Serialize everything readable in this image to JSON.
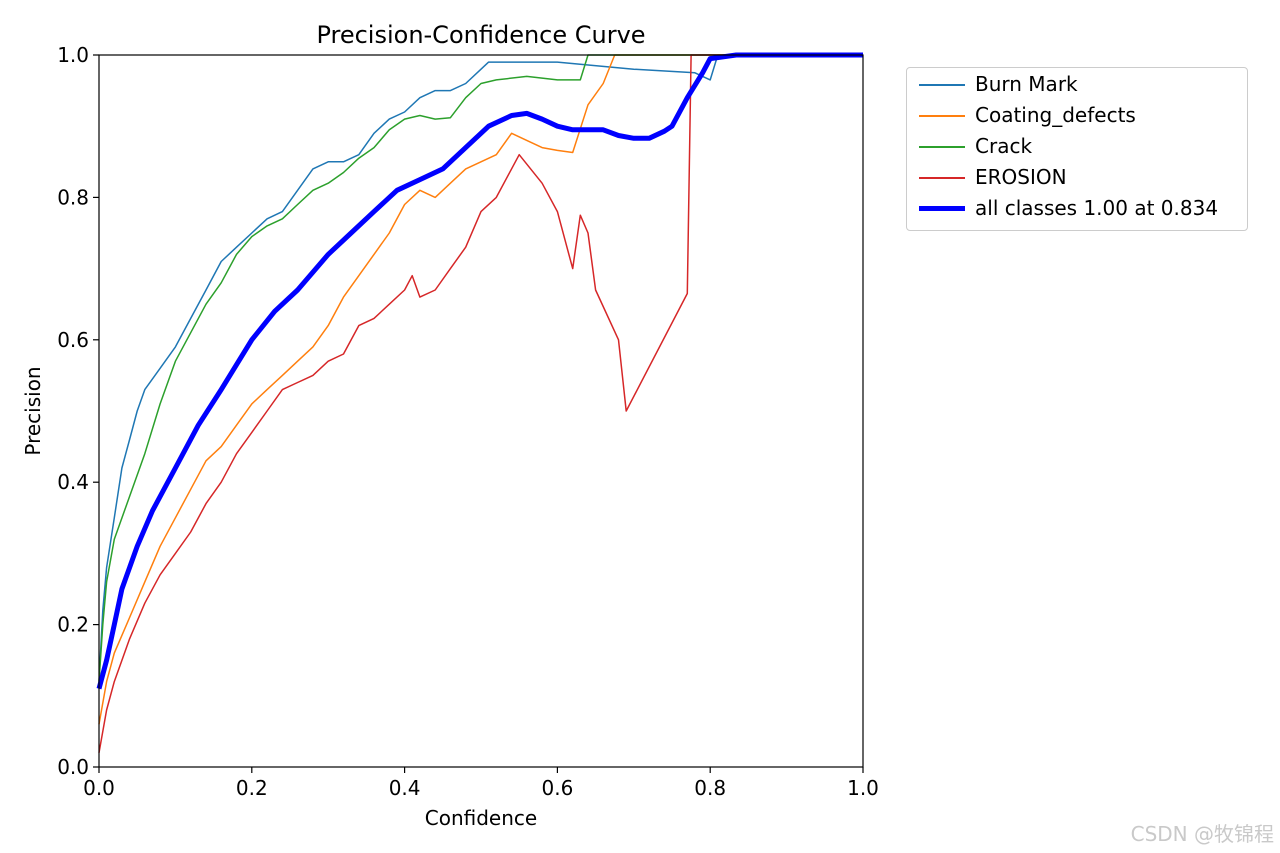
{
  "chart_data": {
    "type": "line",
    "title": "Precision-Confidence Curve",
    "xlabel": "Confidence",
    "ylabel": "Precision",
    "xlim": [
      0.0,
      1.0
    ],
    "ylim": [
      0.0,
      1.0
    ],
    "xticks": [
      "0.0",
      "0.2",
      "0.4",
      "0.6",
      "0.8",
      "1.0"
    ],
    "yticks": [
      "0.0",
      "0.2",
      "0.4",
      "0.6",
      "0.8",
      "1.0"
    ],
    "grid": false,
    "legend_position": "outside-right",
    "series": [
      {
        "name": "Burn Mark",
        "color": "#1f77b4",
        "width": 1.5,
        "points": [
          [
            0,
            0.12
          ],
          [
            0.005,
            0.22
          ],
          [
            0.01,
            0.28
          ],
          [
            0.02,
            0.35
          ],
          [
            0.03,
            0.42
          ],
          [
            0.04,
            0.46
          ],
          [
            0.05,
            0.5
          ],
          [
            0.06,
            0.53
          ],
          [
            0.08,
            0.56
          ],
          [
            0.1,
            0.59
          ],
          [
            0.12,
            0.63
          ],
          [
            0.14,
            0.67
          ],
          [
            0.16,
            0.71
          ],
          [
            0.18,
            0.73
          ],
          [
            0.2,
            0.75
          ],
          [
            0.22,
            0.77
          ],
          [
            0.24,
            0.78
          ],
          [
            0.26,
            0.81
          ],
          [
            0.28,
            0.84
          ],
          [
            0.3,
            0.85
          ],
          [
            0.32,
            0.85
          ],
          [
            0.34,
            0.86
          ],
          [
            0.36,
            0.89
          ],
          [
            0.38,
            0.91
          ],
          [
            0.4,
            0.92
          ],
          [
            0.42,
            0.94
          ],
          [
            0.44,
            0.95
          ],
          [
            0.46,
            0.95
          ],
          [
            0.48,
            0.96
          ],
          [
            0.5,
            0.98
          ],
          [
            0.51,
            0.99
          ],
          [
            0.6,
            0.99
          ],
          [
            0.7,
            0.98
          ],
          [
            0.78,
            0.975
          ],
          [
            0.8,
            0.965
          ],
          [
            0.81,
            1.0
          ],
          [
            1.0,
            1.0
          ]
        ]
      },
      {
        "name": "Coating_defects",
        "color": "#ff7f0e",
        "width": 1.5,
        "points": [
          [
            0,
            0.06
          ],
          [
            0.01,
            0.12
          ],
          [
            0.02,
            0.16
          ],
          [
            0.04,
            0.21
          ],
          [
            0.06,
            0.26
          ],
          [
            0.08,
            0.31
          ],
          [
            0.1,
            0.35
          ],
          [
            0.12,
            0.39
          ],
          [
            0.14,
            0.43
          ],
          [
            0.16,
            0.45
          ],
          [
            0.18,
            0.48
          ],
          [
            0.2,
            0.51
          ],
          [
            0.22,
            0.53
          ],
          [
            0.24,
            0.55
          ],
          [
            0.26,
            0.57
          ],
          [
            0.28,
            0.59
          ],
          [
            0.3,
            0.62
          ],
          [
            0.32,
            0.66
          ],
          [
            0.34,
            0.69
          ],
          [
            0.36,
            0.72
          ],
          [
            0.38,
            0.75
          ],
          [
            0.4,
            0.79
          ],
          [
            0.42,
            0.81
          ],
          [
            0.44,
            0.8
          ],
          [
            0.46,
            0.82
          ],
          [
            0.48,
            0.84
          ],
          [
            0.5,
            0.85
          ],
          [
            0.52,
            0.86
          ],
          [
            0.54,
            0.89
          ],
          [
            0.56,
            0.88
          ],
          [
            0.58,
            0.87
          ],
          [
            0.6,
            0.866
          ],
          [
            0.62,
            0.863
          ],
          [
            0.64,
            0.93
          ],
          [
            0.66,
            0.96
          ],
          [
            0.675,
            1.0
          ],
          [
            1.0,
            1.0
          ]
        ]
      },
      {
        "name": "Crack",
        "color": "#2ca02c",
        "width": 1.5,
        "points": [
          [
            0,
            0.12
          ],
          [
            0.005,
            0.2
          ],
          [
            0.01,
            0.26
          ],
          [
            0.02,
            0.32
          ],
          [
            0.04,
            0.38
          ],
          [
            0.06,
            0.44
          ],
          [
            0.08,
            0.51
          ],
          [
            0.1,
            0.57
          ],
          [
            0.12,
            0.61
          ],
          [
            0.14,
            0.65
          ],
          [
            0.16,
            0.68
          ],
          [
            0.18,
            0.72
          ],
          [
            0.2,
            0.745
          ],
          [
            0.22,
            0.76
          ],
          [
            0.24,
            0.77
          ],
          [
            0.26,
            0.79
          ],
          [
            0.28,
            0.81
          ],
          [
            0.3,
            0.82
          ],
          [
            0.32,
            0.835
          ],
          [
            0.34,
            0.855
          ],
          [
            0.36,
            0.87
          ],
          [
            0.38,
            0.895
          ],
          [
            0.4,
            0.91
          ],
          [
            0.42,
            0.915
          ],
          [
            0.44,
            0.91
          ],
          [
            0.46,
            0.912
          ],
          [
            0.48,
            0.94
          ],
          [
            0.5,
            0.96
          ],
          [
            0.52,
            0.965
          ],
          [
            0.56,
            0.97
          ],
          [
            0.6,
            0.965
          ],
          [
            0.63,
            0.965
          ],
          [
            0.64,
            1.0
          ],
          [
            1.0,
            1.0
          ]
        ]
      },
      {
        "name": "EROSION",
        "color": "#d62728",
        "width": 1.5,
        "points": [
          [
            0,
            0.02
          ],
          [
            0.01,
            0.08
          ],
          [
            0.02,
            0.12
          ],
          [
            0.04,
            0.18
          ],
          [
            0.06,
            0.23
          ],
          [
            0.08,
            0.27
          ],
          [
            0.1,
            0.3
          ],
          [
            0.12,
            0.33
          ],
          [
            0.14,
            0.37
          ],
          [
            0.16,
            0.4
          ],
          [
            0.18,
            0.44
          ],
          [
            0.2,
            0.47
          ],
          [
            0.22,
            0.5
          ],
          [
            0.24,
            0.53
          ],
          [
            0.26,
            0.54
          ],
          [
            0.28,
            0.55
          ],
          [
            0.3,
            0.57
          ],
          [
            0.32,
            0.58
          ],
          [
            0.34,
            0.62
          ],
          [
            0.36,
            0.63
          ],
          [
            0.38,
            0.65
          ],
          [
            0.4,
            0.67
          ],
          [
            0.41,
            0.69
          ],
          [
            0.42,
            0.66
          ],
          [
            0.44,
            0.67
          ],
          [
            0.46,
            0.7
          ],
          [
            0.48,
            0.73
          ],
          [
            0.5,
            0.78
          ],
          [
            0.52,
            0.8
          ],
          [
            0.55,
            0.86
          ],
          [
            0.58,
            0.82
          ],
          [
            0.6,
            0.78
          ],
          [
            0.62,
            0.7
          ],
          [
            0.63,
            0.775
          ],
          [
            0.64,
            0.75
          ],
          [
            0.65,
            0.67
          ],
          [
            0.68,
            0.6
          ],
          [
            0.69,
            0.5
          ],
          [
            0.77,
            0.665
          ],
          [
            0.775,
            1.0
          ],
          [
            1.0,
            1.0
          ]
        ]
      },
      {
        "name": "all classes 1.00 at 0.834",
        "color": "#0000ff",
        "width": 5,
        "points": [
          [
            0,
            0.11
          ],
          [
            0.01,
            0.15
          ],
          [
            0.02,
            0.2
          ],
          [
            0.03,
            0.25
          ],
          [
            0.05,
            0.31
          ],
          [
            0.07,
            0.36
          ],
          [
            0.1,
            0.42
          ],
          [
            0.13,
            0.48
          ],
          [
            0.16,
            0.53
          ],
          [
            0.2,
            0.6
          ],
          [
            0.23,
            0.64
          ],
          [
            0.26,
            0.67
          ],
          [
            0.3,
            0.72
          ],
          [
            0.33,
            0.75
          ],
          [
            0.36,
            0.78
          ],
          [
            0.39,
            0.81
          ],
          [
            0.42,
            0.825
          ],
          [
            0.45,
            0.84
          ],
          [
            0.48,
            0.87
          ],
          [
            0.51,
            0.9
          ],
          [
            0.54,
            0.915
          ],
          [
            0.56,
            0.918
          ],
          [
            0.58,
            0.91
          ],
          [
            0.6,
            0.9
          ],
          [
            0.62,
            0.895
          ],
          [
            0.64,
            0.895
          ],
          [
            0.66,
            0.895
          ],
          [
            0.68,
            0.887
          ],
          [
            0.7,
            0.883
          ],
          [
            0.72,
            0.883
          ],
          [
            0.74,
            0.893
          ],
          [
            0.75,
            0.9
          ],
          [
            0.77,
            0.94
          ],
          [
            0.79,
            0.975
          ],
          [
            0.8,
            0.995
          ],
          [
            0.834,
            1.0
          ],
          [
            1.0,
            1.0
          ]
        ]
      }
    ]
  },
  "watermark": "CSDN @牧锦程"
}
